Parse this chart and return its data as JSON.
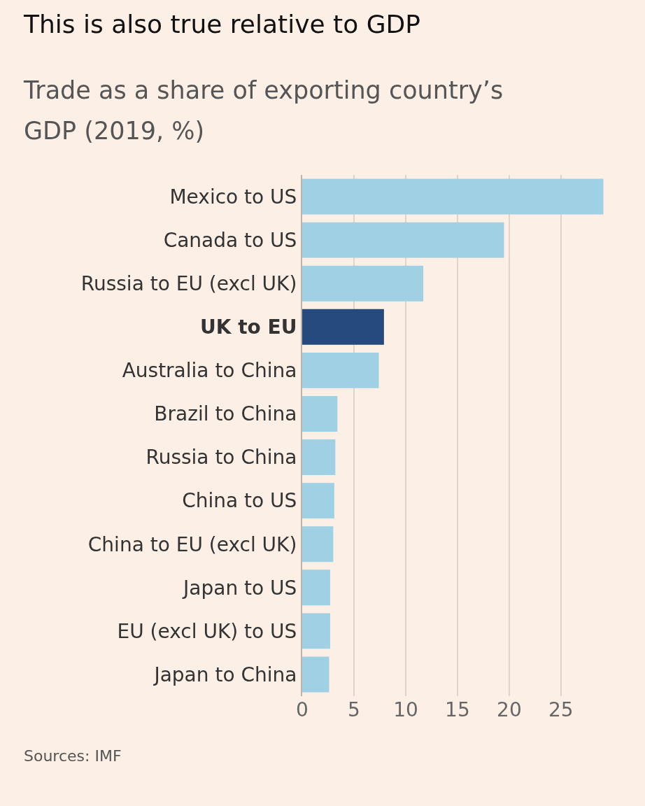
{
  "chart_data": {
    "type": "bar",
    "orientation": "horizontal",
    "title": "This is also true relative to GDP",
    "subtitle": "Trade as a share of exporting country’s GDP (2019, %)",
    "categories": [
      "Mexico to US",
      "Canada to US",
      "Russia to EU (excl UK)",
      "UK to EU",
      "Australia to China",
      "Brazil to China",
      "Russia to China",
      "China to US",
      "China to EU (excl UK)",
      "Japan to US",
      "EU (excl UK) to US",
      "Japan to China"
    ],
    "values": [
      29.1,
      19.5,
      11.7,
      7.9,
      7.4,
      3.4,
      3.2,
      3.1,
      3.0,
      2.7,
      2.7,
      2.6
    ],
    "colors": [
      "#9fd0e4",
      "#9fd0e4",
      "#9fd0e4",
      "#264a7e",
      "#9fd0e4",
      "#9fd0e4",
      "#9fd0e4",
      "#9fd0e4",
      "#9fd0e4",
      "#9fd0e4",
      "#9fd0e4",
      "#9fd0e4"
    ],
    "xlim": [
      0,
      29.2
    ],
    "xticks": [
      0,
      5,
      10,
      15,
      20,
      25
    ],
    "grid": "x",
    "annotations": [
      "Sources: IMF"
    ]
  }
}
